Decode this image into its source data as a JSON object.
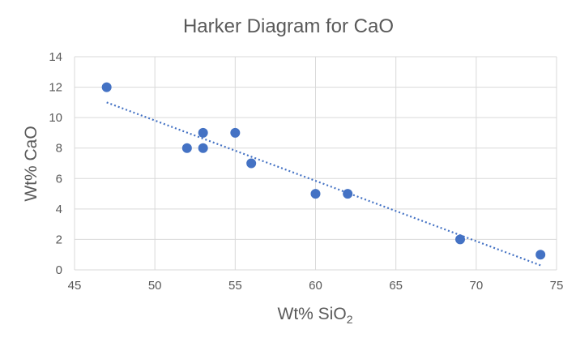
{
  "chart_data": {
    "type": "scatter",
    "title": "Harker Diagram for CaO",
    "xlabel_main": "Wt% SiO",
    "xlabel_sub": "2",
    "ylabel": "Wt% CaO",
    "xlim": [
      45,
      75
    ],
    "ylim": [
      0,
      14
    ],
    "x_ticks": [
      45,
      50,
      55,
      60,
      65,
      70,
      75
    ],
    "y_ticks": [
      0,
      2,
      4,
      6,
      8,
      10,
      12,
      14
    ],
    "grid": true,
    "legend": "none",
    "series": [
      {
        "points": [
          {
            "x": 47,
            "y": 12
          },
          {
            "x": 52,
            "y": 8
          },
          {
            "x": 53,
            "y": 9
          },
          {
            "x": 53,
            "y": 8
          },
          {
            "x": 55,
            "y": 9
          },
          {
            "x": 56,
            "y": 7
          },
          {
            "x": 60,
            "y": 5
          },
          {
            "x": 62,
            "y": 5
          },
          {
            "x": 69,
            "y": 2
          },
          {
            "x": 74,
            "y": 1
          }
        ],
        "color": "#4472c4"
      }
    ],
    "trendline": {
      "style": "dotted linear",
      "color": "#4472c4",
      "start": {
        "x": 47,
        "y": 11.0
      },
      "end": {
        "x": 74,
        "y": 0.3
      }
    }
  }
}
